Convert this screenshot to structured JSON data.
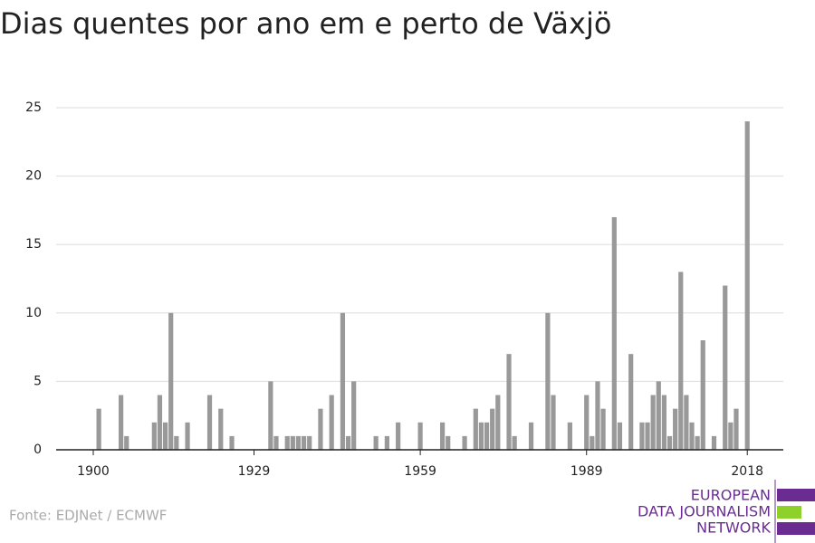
{
  "chart_data": {
    "type": "bar",
    "title": "Dias quentes por ano em e perto de Växjö",
    "x": [
      1900,
      1901,
      1902,
      1903,
      1904,
      1905,
      1906,
      1907,
      1908,
      1909,
      1910,
      1911,
      1912,
      1913,
      1914,
      1915,
      1916,
      1917,
      1918,
      1919,
      1920,
      1921,
      1922,
      1923,
      1924,
      1925,
      1926,
      1927,
      1928,
      1929,
      1930,
      1931,
      1932,
      1933,
      1934,
      1935,
      1936,
      1937,
      1938,
      1939,
      1940,
      1941,
      1942,
      1943,
      1944,
      1945,
      1946,
      1947,
      1948,
      1949,
      1950,
      1951,
      1952,
      1953,
      1954,
      1955,
      1956,
      1957,
      1958,
      1959,
      1960,
      1961,
      1962,
      1963,
      1964,
      1965,
      1966,
      1967,
      1968,
      1969,
      1970,
      1971,
      1972,
      1973,
      1974,
      1975,
      1976,
      1977,
      1978,
      1979,
      1980,
      1981,
      1982,
      1983,
      1984,
      1985,
      1986,
      1987,
      1988,
      1989,
      1990,
      1991,
      1992,
      1993,
      1994,
      1995,
      1996,
      1997,
      1998,
      1999,
      2000,
      2001,
      2002,
      2003,
      2004,
      2005,
      2006,
      2007,
      2008,
      2009,
      2010,
      2011,
      2012,
      2013,
      2014,
      2015,
      2016,
      2017,
      2018
    ],
    "values": [
      0,
      3,
      0,
      0,
      0,
      4,
      1,
      0,
      0,
      0,
      0,
      2,
      4,
      2,
      10,
      1,
      0,
      2,
      0,
      0,
      0,
      4,
      0,
      3,
      0,
      1,
      0,
      0,
      0,
      0,
      0,
      0,
      5,
      1,
      0,
      1,
      1,
      1,
      1,
      1,
      0,
      3,
      0,
      4,
      0,
      10,
      1,
      5,
      0,
      0,
      0,
      1,
      0,
      1,
      0,
      2,
      0,
      0,
      0,
      2,
      0,
      0,
      0,
      2,
      1,
      0,
      0,
      1,
      0,
      3,
      2,
      2,
      3,
      4,
      0,
      7,
      1,
      0,
      0,
      2,
      0,
      0,
      10,
      4,
      0,
      0,
      2,
      0,
      0,
      4,
      1,
      5,
      3,
      0,
      17,
      2,
      0,
      7,
      0,
      2,
      2,
      4,
      5,
      4,
      1,
      3,
      13,
      4,
      2,
      1,
      8,
      0,
      1,
      0,
      12,
      2,
      3,
      0,
      24
    ],
    "color": "#999999",
    "xlim": [
      1893.3,
      2024.5
    ],
    "xticks": [
      1900,
      1929,
      1959,
      1989,
      2018
    ],
    "ylim": [
      0,
      25
    ],
    "yticks": [
      0,
      5,
      10,
      15,
      20,
      25
    ],
    "grid": true,
    "source": "Fonte: EDJNet / ECMWF"
  },
  "logo": {
    "lines": [
      "EUROPEAN",
      "DATA JOURNALISM",
      "NETWORK"
    ]
  }
}
